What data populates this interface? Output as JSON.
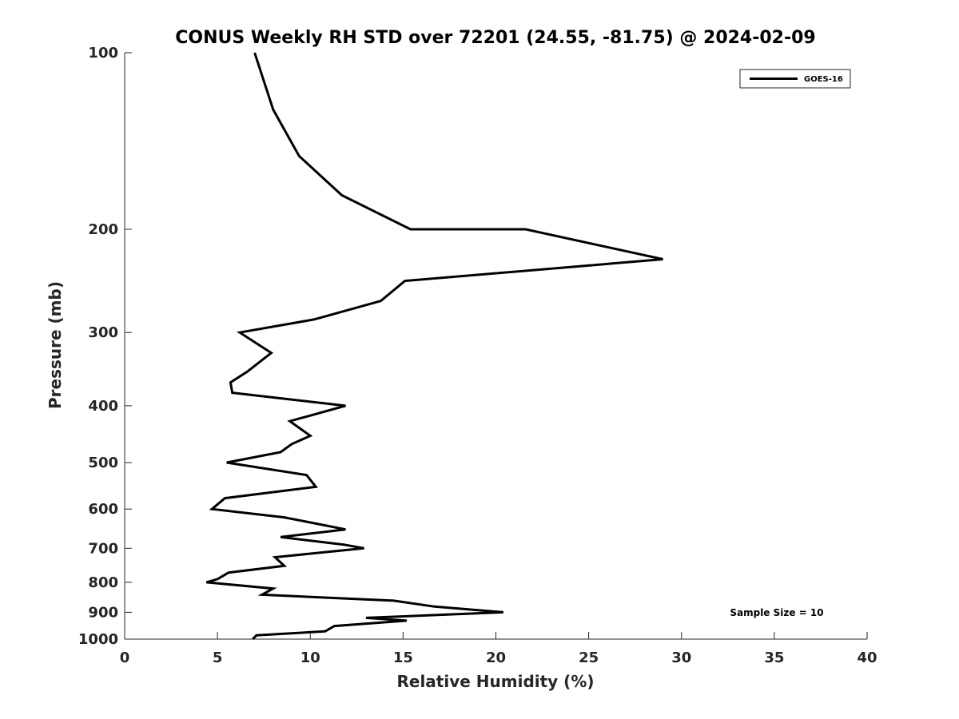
{
  "chart_data": {
    "type": "line",
    "title": "CONUS Weekly RH STD over 72201 (24.55, -81.75) @ 2024-02-09",
    "xlabel": "Relative Humidity (%)",
    "ylabel": "Pressure (mb)",
    "xlim": [
      0,
      40
    ],
    "ylim": [
      100,
      1000
    ],
    "yscale": "log",
    "yreversed": true,
    "grid": false,
    "legend_position": "top-right",
    "x_ticks": [
      0,
      5,
      10,
      15,
      20,
      25,
      30,
      35,
      40
    ],
    "x_tick_labels": [
      "0",
      "5",
      "10",
      "15",
      "20",
      "25",
      "30",
      "35",
      "40"
    ],
    "y_ticks": [
      100,
      200,
      300,
      400,
      500,
      600,
      700,
      800,
      900,
      1000
    ],
    "y_tick_labels": [
      "100",
      "200",
      "300",
      "400",
      "500",
      "600",
      "700",
      "800",
      "900",
      "1000"
    ],
    "series": [
      {
        "name": "GOES-16",
        "color": "#000000",
        "points": [
          [
            7.0,
            100
          ],
          [
            8.0,
            125
          ],
          [
            9.4,
            150
          ],
          [
            11.7,
            175
          ],
          [
            15.4,
            200
          ],
          [
            21.6,
            200
          ],
          [
            29.0,
            225
          ],
          [
            15.1,
            245
          ],
          [
            13.8,
            265
          ],
          [
            10.2,
            285
          ],
          [
            6.2,
            300
          ],
          [
            7.9,
            325
          ],
          [
            6.6,
            350
          ],
          [
            5.7,
            365
          ],
          [
            5.8,
            380
          ],
          [
            11.9,
            400
          ],
          [
            8.9,
            425
          ],
          [
            10.0,
            450
          ],
          [
            9.0,
            465
          ],
          [
            8.4,
            480
          ],
          [
            5.5,
            500
          ],
          [
            9.8,
            525
          ],
          [
            10.3,
            550
          ],
          [
            5.4,
            575
          ],
          [
            4.7,
            600
          ],
          [
            8.6,
            620
          ],
          [
            11.9,
            650
          ],
          [
            8.4,
            670
          ],
          [
            11.8,
            690
          ],
          [
            12.9,
            700
          ],
          [
            8.1,
            725
          ],
          [
            8.6,
            750
          ],
          [
            5.6,
            770
          ],
          [
            5.0,
            790
          ],
          [
            4.4,
            800
          ],
          [
            8.0,
            820
          ],
          [
            7.4,
            840
          ],
          [
            14.5,
            860
          ],
          [
            16.7,
            880
          ],
          [
            20.4,
            900
          ],
          [
            13.0,
            920
          ],
          [
            15.2,
            930
          ],
          [
            11.3,
            950
          ],
          [
            10.8,
            970
          ],
          [
            7.1,
            985
          ],
          [
            6.9,
            1000
          ]
        ]
      }
    ],
    "annotations": [
      "Sample Size = 10"
    ]
  }
}
